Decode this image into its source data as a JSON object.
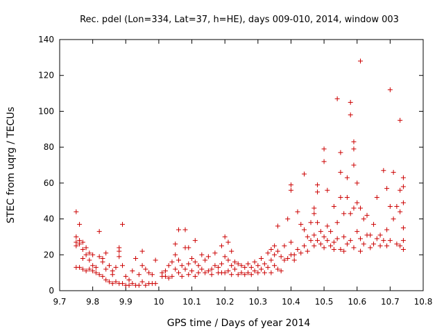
{
  "chart_data": {
    "type": "scatter",
    "title": "Rec. pdel (Lon=334, Lat=37, h=HE), days 009-010, 2014, window 003",
    "xlabel": "GPS time / Days of year 2014",
    "ylabel": "STEC from uqrg / TECUs",
    "xlim": [
      9.7,
      10.8
    ],
    "ylim": [
      0,
      140
    ],
    "xticks": [
      9.7,
      9.8,
      9.9,
      10,
      10.1,
      10.2,
      10.3,
      10.4,
      10.5,
      10.6,
      10.7,
      10.8
    ],
    "xtick_labels": [
      "9.7",
      "9.8",
      "9.9",
      "10",
      "10.1",
      "10.2",
      "10.3",
      "10.4",
      "10.5",
      "10.6",
      "10.7",
      "10.8"
    ],
    "yticks": [
      0,
      20,
      40,
      60,
      80,
      100,
      120,
      140
    ],
    "ytick_labels": [
      "0",
      "20",
      "40",
      "60",
      "80",
      "100",
      "120",
      "140"
    ],
    "grid": false,
    "marker": "+",
    "color": "#cc0000",
    "series": [
      {
        "name": "STEC",
        "points": [
          [
            9.75,
            44
          ],
          [
            9.75,
            30
          ],
          [
            9.75,
            27
          ],
          [
            9.75,
            25
          ],
          [
            9.75,
            13
          ],
          [
            9.76,
            26
          ],
          [
            9.76,
            28
          ],
          [
            9.76,
            37
          ],
          [
            9.76,
            13
          ],
          [
            9.77,
            27
          ],
          [
            9.77,
            23
          ],
          [
            9.77,
            18
          ],
          [
            9.77,
            12
          ],
          [
            9.78,
            24
          ],
          [
            9.78,
            20
          ],
          [
            9.78,
            11
          ],
          [
            9.79,
            21
          ],
          [
            9.79,
            17
          ],
          [
            9.79,
            12
          ],
          [
            9.8,
            14
          ],
          [
            9.8,
            11
          ],
          [
            9.8,
            20
          ],
          [
            9.81,
            13
          ],
          [
            9.81,
            10
          ],
          [
            9.82,
            19
          ],
          [
            9.82,
            33
          ],
          [
            9.82,
            9
          ],
          [
            9.83,
            16
          ],
          [
            9.83,
            18
          ],
          [
            9.83,
            8
          ],
          [
            9.84,
            12
          ],
          [
            9.84,
            6
          ],
          [
            9.84,
            21
          ],
          [
            9.85,
            14
          ],
          [
            9.85,
            5
          ],
          [
            9.86,
            9
          ],
          [
            9.86,
            4
          ],
          [
            9.86,
            11
          ],
          [
            9.87,
            13
          ],
          [
            9.87,
            5
          ],
          [
            9.88,
            22
          ],
          [
            9.88,
            19
          ],
          [
            9.88,
            4
          ],
          [
            9.88,
            24
          ],
          [
            9.89,
            37
          ],
          [
            9.89,
            14
          ],
          [
            9.89,
            4
          ],
          [
            9.9,
            8
          ],
          [
            9.9,
            3
          ],
          [
            9.91,
            6
          ],
          [
            9.91,
            3
          ],
          [
            9.92,
            11
          ],
          [
            9.92,
            4
          ],
          [
            9.93,
            18
          ],
          [
            9.93,
            3
          ],
          [
            9.94,
            9
          ],
          [
            9.94,
            3
          ],
          [
            9.95,
            22
          ],
          [
            9.95,
            14
          ],
          [
            9.95,
            5
          ],
          [
            9.96,
            12
          ],
          [
            9.96,
            3
          ],
          [
            9.97,
            10
          ],
          [
            9.97,
            4
          ],
          [
            9.98,
            9
          ],
          [
            9.98,
            4
          ],
          [
            9.99,
            17
          ],
          [
            9.99,
            4
          ],
          [
            10.01,
            10
          ],
          [
            10.01,
            8
          ],
          [
            10.02,
            11
          ],
          [
            10.02,
            8
          ],
          [
            10.03,
            14
          ],
          [
            10.03,
            7
          ],
          [
            10.04,
            16
          ],
          [
            10.04,
            8
          ],
          [
            10.05,
            26
          ],
          [
            10.05,
            20
          ],
          [
            10.05,
            12
          ],
          [
            10.06,
            34
          ],
          [
            10.06,
            17
          ],
          [
            10.06,
            10
          ],
          [
            10.07,
            14
          ],
          [
            10.07,
            8
          ],
          [
            10.08,
            34
          ],
          [
            10.08,
            24
          ],
          [
            10.08,
            12
          ],
          [
            10.09,
            24
          ],
          [
            10.09,
            15
          ],
          [
            10.09,
            9
          ],
          [
            10.1,
            18
          ],
          [
            10.1,
            11
          ],
          [
            10.11,
            28
          ],
          [
            10.11,
            16
          ],
          [
            10.11,
            8
          ],
          [
            10.12,
            14
          ],
          [
            10.12,
            10
          ],
          [
            10.13,
            20
          ],
          [
            10.13,
            12
          ],
          [
            10.14,
            17
          ],
          [
            10.14,
            10
          ],
          [
            10.15,
            19
          ],
          [
            10.15,
            11
          ],
          [
            10.16,
            12
          ],
          [
            10.16,
            9
          ],
          [
            10.17,
            21
          ],
          [
            10.17,
            14
          ],
          [
            10.18,
            13
          ],
          [
            10.18,
            10
          ],
          [
            10.19,
            25
          ],
          [
            10.19,
            15
          ],
          [
            10.19,
            10
          ],
          [
            10.2,
            30
          ],
          [
            10.2,
            19
          ],
          [
            10.2,
            10
          ],
          [
            10.21,
            27
          ],
          [
            10.21,
            17
          ],
          [
            10.21,
            11
          ],
          [
            10.22,
            22
          ],
          [
            10.22,
            14
          ],
          [
            10.22,
            9
          ],
          [
            10.23,
            16
          ],
          [
            10.23,
            12
          ],
          [
            10.24,
            15
          ],
          [
            10.24,
            9
          ],
          [
            10.25,
            14
          ],
          [
            10.25,
            10
          ],
          [
            10.26,
            13
          ],
          [
            10.26,
            9
          ],
          [
            10.27,
            15
          ],
          [
            10.27,
            10
          ],
          [
            10.28,
            13
          ],
          [
            10.28,
            9
          ],
          [
            10.29,
            16
          ],
          [
            10.29,
            11
          ],
          [
            10.3,
            14
          ],
          [
            10.3,
            10
          ],
          [
            10.31,
            18
          ],
          [
            10.31,
            12
          ],
          [
            10.32,
            15
          ],
          [
            10.32,
            10
          ],
          [
            10.33,
            21
          ],
          [
            10.33,
            13
          ],
          [
            10.34,
            23
          ],
          [
            10.34,
            17
          ],
          [
            10.34,
            10
          ],
          [
            10.35,
            25
          ],
          [
            10.35,
            20
          ],
          [
            10.35,
            14
          ],
          [
            10.36,
            36
          ],
          [
            10.36,
            22
          ],
          [
            10.36,
            12
          ],
          [
            10.37,
            19
          ],
          [
            10.37,
            11
          ],
          [
            10.38,
            25
          ],
          [
            10.38,
            17
          ],
          [
            10.39,
            40
          ],
          [
            10.39,
            18
          ],
          [
            10.4,
            59
          ],
          [
            10.4,
            56
          ],
          [
            10.4,
            27
          ],
          [
            10.4,
            20
          ],
          [
            10.41,
            20
          ],
          [
            10.41,
            17
          ],
          [
            10.42,
            44
          ],
          [
            10.42,
            23
          ],
          [
            10.43,
            37
          ],
          [
            10.43,
            21
          ],
          [
            10.44,
            65
          ],
          [
            10.44,
            34
          ],
          [
            10.44,
            25
          ],
          [
            10.45,
            30
          ],
          [
            10.45,
            22
          ],
          [
            10.46,
            38
          ],
          [
            10.46,
            28
          ],
          [
            10.47,
            46
          ],
          [
            10.47,
            43
          ],
          [
            10.47,
            31
          ],
          [
            10.47,
            25
          ],
          [
            10.48,
            59
          ],
          [
            10.48,
            55
          ],
          [
            10.48,
            38
          ],
          [
            10.48,
            28
          ],
          [
            10.49,
            33
          ],
          [
            10.49,
            26
          ],
          [
            10.5,
            79
          ],
          [
            10.5,
            72
          ],
          [
            10.5,
            30
          ],
          [
            10.5,
            24
          ],
          [
            10.51,
            56
          ],
          [
            10.51,
            36
          ],
          [
            10.51,
            28
          ],
          [
            10.52,
            33
          ],
          [
            10.52,
            25
          ],
          [
            10.53,
            47
          ],
          [
            10.53,
            27
          ],
          [
            10.53,
            23
          ],
          [
            10.54,
            107
          ],
          [
            10.54,
            38
          ],
          [
            10.54,
            29
          ],
          [
            10.55,
            66
          ],
          [
            10.55,
            77
          ],
          [
            10.55,
            52
          ],
          [
            10.55,
            23
          ],
          [
            10.56,
            43
          ],
          [
            10.56,
            30
          ],
          [
            10.56,
            22
          ],
          [
            10.57,
            63
          ],
          [
            10.57,
            52
          ],
          [
            10.57,
            26
          ],
          [
            10.58,
            98
          ],
          [
            10.58,
            105
          ],
          [
            10.58,
            43
          ],
          [
            10.58,
            28
          ],
          [
            10.59,
            83
          ],
          [
            10.59,
            79
          ],
          [
            10.59,
            70
          ],
          [
            10.59,
            46
          ],
          [
            10.59,
            24
          ],
          [
            10.6,
            60
          ],
          [
            10.6,
            49
          ],
          [
            10.6,
            33
          ],
          [
            10.61,
            128
          ],
          [
            10.61,
            46
          ],
          [
            10.61,
            29
          ],
          [
            10.61,
            22
          ],
          [
            10.62,
            40
          ],
          [
            10.62,
            26
          ],
          [
            10.63,
            42
          ],
          [
            10.63,
            31
          ],
          [
            10.64,
            31
          ],
          [
            10.64,
            24
          ],
          [
            10.65,
            37
          ],
          [
            10.65,
            26
          ],
          [
            10.66,
            52
          ],
          [
            10.66,
            29
          ],
          [
            10.67,
            31
          ],
          [
            10.67,
            25
          ],
          [
            10.68,
            67
          ],
          [
            10.68,
            28
          ],
          [
            10.69,
            57
          ],
          [
            10.69,
            34
          ],
          [
            10.69,
            25
          ],
          [
            10.7,
            112
          ],
          [
            10.7,
            47
          ],
          [
            10.7,
            28
          ],
          [
            10.71,
            66
          ],
          [
            10.71,
            40
          ],
          [
            10.72,
            47
          ],
          [
            10.72,
            26
          ],
          [
            10.73,
            95
          ],
          [
            10.73,
            56
          ],
          [
            10.73,
            44
          ],
          [
            10.73,
            25
          ],
          [
            10.74,
            63
          ],
          [
            10.74,
            58
          ],
          [
            10.74,
            49
          ],
          [
            10.74,
            35
          ],
          [
            10.74,
            28
          ],
          [
            10.74,
            23
          ]
        ]
      }
    ]
  }
}
